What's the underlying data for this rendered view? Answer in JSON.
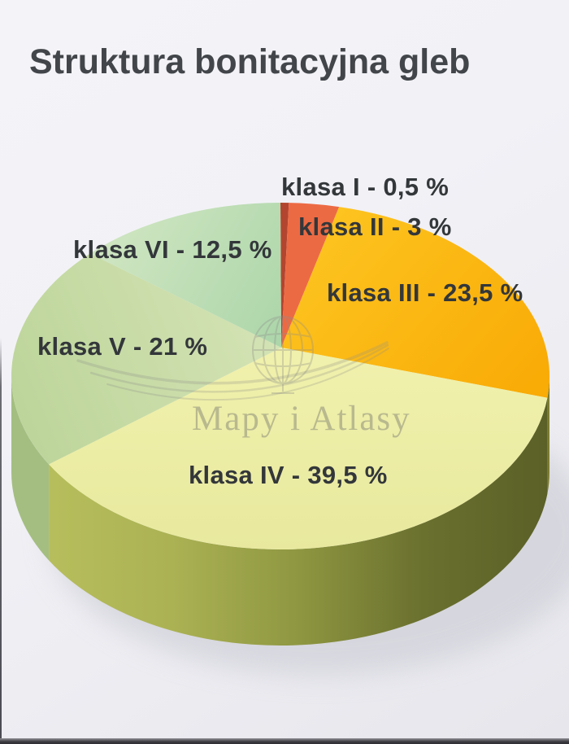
{
  "chart_data": {
    "type": "pie",
    "style": "3d",
    "title": "Struktura bonitacyjna gleb",
    "unit": "%",
    "direction": "clockwise",
    "start": "12-oclock",
    "legend": "none",
    "categories": [
      "klasa I",
      "klasa II",
      "klasa III",
      "klasa IV",
      "klasa V",
      "klasa VI"
    ],
    "values": [
      0.5,
      3,
      23.5,
      39.5,
      21,
      12.5
    ],
    "display_labels": [
      "klasa I - 0,5 %",
      "klasa II - 3 %",
      "klasa III - 23,5 %",
      "klasa IV - 39,5 %",
      "klasa V - 21 %",
      "klasa VI - 12,5 %"
    ],
    "top_fills": [
      "#b2452f",
      "#ec6a43",
      [
        "#fdc31f",
        "#f9ab06"
      ],
      [
        "#f0f1ac",
        "#e8e99e"
      ],
      [
        "#d4e3b4",
        "#bdd59b"
      ],
      [
        "#d0e6c2",
        "#abd5a9"
      ]
    ],
    "side_fills": [
      "#7e3322",
      "#c05233",
      "#7d7c31",
      [
        "#b7be5c",
        "#abb254",
        "#8f9741",
        "#6a702e",
        "#5a6027"
      ],
      "#a4be81",
      "#84aa76"
    ]
  },
  "watermark": {
    "text": "Mapy i Atlasy",
    "color": "#8e8e89"
  },
  "photo": {
    "background_top": "#f4f4f8",
    "background_bottom": "#e6e6ec",
    "bottom_bar": "#3a3a3f",
    "left_edge": "#4a4a52",
    "shadow": "#c7c7d1",
    "label_color": "#33373a",
    "title_color": "#42464a"
  }
}
